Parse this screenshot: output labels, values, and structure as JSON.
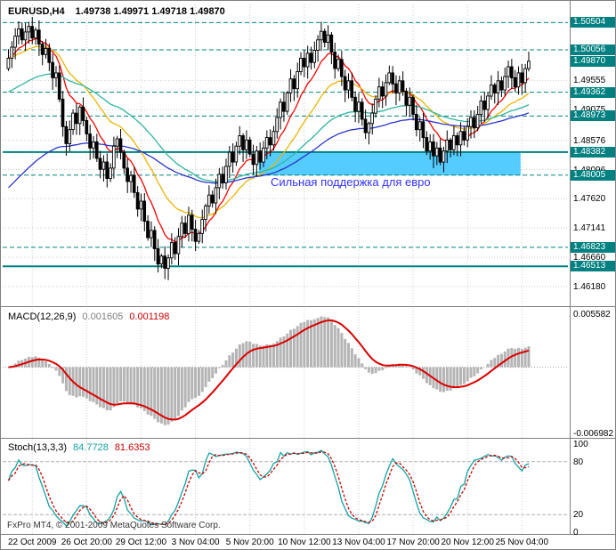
{
  "main": {
    "symbol_title": "EURUSD,H4",
    "ohlc_text": "1.49738 1.49971 1.49718 1.49870",
    "annotation": {
      "text": "Сильная поддержка для евро"
    },
    "moving_averages": [
      {
        "period": 10,
        "color": "#ff0000",
        "seed": null
      },
      {
        "period": 24,
        "color": "#edb400",
        "seed": null
      },
      {
        "period": 55,
        "color": "#2eb6a0",
        "seed": 1.4935
      },
      {
        "period": 85,
        "color": "#2a35c8",
        "seed": 1.4775
      }
    ]
  },
  "price_scale": {
    "plain_labels": [
      {
        "text": "1.49555",
        "value": 1.49555
      },
      {
        "text": "1.49075",
        "value": 1.49075
      },
      {
        "text": "1.48576",
        "value": 1.48576
      },
      {
        "text": "1.48096",
        "value": 1.48096
      },
      {
        "text": "1.47620",
        "value": 1.4762
      },
      {
        "text": "1.47141",
        "value": 1.47141
      },
      {
        "text": "1.46660",
        "value": 1.4666
      },
      {
        "text": "1.46180",
        "value": 1.4618
      }
    ],
    "badges": [
      {
        "text": "1.50504",
        "value": 1.50504,
        "line": "dashed"
      },
      {
        "text": "1.50056",
        "value": 1.50056,
        "line": "dashed"
      },
      {
        "text": "1.49870",
        "value": 1.4987,
        "line": "none",
        "role": "current-price"
      },
      {
        "text": "1.49362",
        "value": 1.49362,
        "line": "dashed"
      },
      {
        "text": "1.48973",
        "value": 1.48973,
        "line": "dashed"
      },
      {
        "text": "1.48382",
        "value": 1.48382,
        "line": "solid"
      },
      {
        "text": "1.48005",
        "value": 1.48005,
        "line": "dashed"
      },
      {
        "text": "1.46823",
        "value": 1.46823,
        "line": "dashed"
      },
      {
        "text": "1.46513",
        "value": 1.46513,
        "line": "solid"
      }
    ]
  },
  "chart_data": {
    "type": "candlestick",
    "symbol": "EURUSD",
    "timeframe": "H4",
    "last_ohlc": {
      "open": 1.49738,
      "high": 1.49971,
      "low": 1.49718,
      "close": 1.4987
    },
    "price_axis_top": 1.508,
    "price_axis_bottom": 1.4586,
    "first_open": 1.4975,
    "closes": [
      1.4992,
      1.501,
      1.5028,
      1.504,
      1.5022,
      1.5035,
      1.5044,
      1.5025,
      1.5038,
      1.5015,
      1.4998,
      1.5008,
      1.4985,
      1.496,
      1.4968,
      1.4925,
      1.488,
      1.4852,
      1.4875,
      1.4902,
      1.4885,
      1.4912,
      1.489,
      1.4868,
      1.4845,
      1.4855,
      1.4828,
      1.481,
      1.4822,
      1.4795,
      1.4812,
      1.4848,
      1.486,
      1.4838,
      1.4812,
      1.479,
      1.48,
      1.4772,
      1.4745,
      1.4758,
      1.4725,
      1.4698,
      1.471,
      1.468,
      1.4655,
      1.4668,
      1.4648,
      1.4665,
      1.469,
      1.4672,
      1.47,
      1.4722,
      1.4705,
      1.4735,
      1.4712,
      1.4692,
      1.4705,
      1.4728,
      1.475,
      1.4768,
      1.4755,
      1.478,
      1.4802,
      1.4788,
      1.4815,
      1.4838,
      1.4822,
      1.4848,
      1.4865,
      1.4842,
      1.4858,
      1.4835,
      1.4818,
      1.484,
      1.4822,
      1.4845,
      1.4862,
      1.485,
      1.4872,
      1.4895,
      1.492,
      1.4905,
      1.4935,
      1.4958,
      1.4942,
      1.497,
      1.4992,
      1.4978,
      1.5,
      1.4985,
      1.5005,
      1.5022,
      1.5036,
      1.5018,
      1.503,
      1.5002,
      1.4975,
      1.499,
      1.4962,
      1.494,
      1.4955,
      1.4928,
      1.4905,
      1.492,
      1.4892,
      1.487,
      1.4885,
      1.4902,
      1.4925,
      1.4945,
      1.493,
      1.4952,
      1.4968,
      1.495,
      1.4935,
      1.4955,
      1.4938,
      1.4915,
      1.4928,
      1.49,
      1.4875,
      1.4888,
      1.4862,
      1.484,
      1.4855,
      1.4832,
      1.4845,
      1.4822,
      1.484,
      1.4858,
      1.4842,
      1.4865,
      1.485,
      1.4872,
      1.4858,
      1.488,
      1.4895,
      1.4878,
      1.49,
      1.4922,
      1.4908,
      1.493,
      1.4948,
      1.4935,
      1.4955,
      1.494,
      1.4962,
      1.4978,
      1.496,
      1.4945,
      1.4968,
      1.4952,
      1.4975,
      1.4987
    ],
    "x_ticks": [
      {
        "label": "22 Oct 2009",
        "bar": 7
      },
      {
        "label": "26 Oct 20:00",
        "bar": 23
      },
      {
        "label": "29 Oct 12:00",
        "bar": 39
      },
      {
        "label": "3 Nov 04:00",
        "bar": 55
      },
      {
        "label": "5 Nov 20:00",
        "bar": 71
      },
      {
        "label": "10 Nov 12:00",
        "bar": 87
      },
      {
        "label": "13 Nov 04:00",
        "bar": 103
      },
      {
        "label": "17 Nov 20:00",
        "bar": 119
      },
      {
        "label": "20 Nov 12:00",
        "bar": 135
      },
      {
        "label": "25 Nov 04:00",
        "bar": 151
      }
    ],
    "support_zone": {
      "price_top": 1.4838,
      "price_bottom": 1.48,
      "bar_start": 74,
      "bar_end": 151,
      "color": "#55ccff"
    }
  },
  "macd": {
    "title": "MACD(12,26,9)",
    "value_main": "0.001605",
    "value_signal": "0.001198",
    "params": {
      "fast": 12,
      "slow": 26,
      "signal": 9
    },
    "axis_labels": [
      {
        "text": "0.005582",
        "value": 0.005582
      },
      {
        "text": "-0.006982",
        "value": -0.006982
      }
    ],
    "scale": {
      "top": 0.0058,
      "bottom": -0.007
    },
    "colors": {
      "histogram": "#b4b4b4",
      "signal": "#dd0000"
    },
    "value_colors": [
      "#808080",
      "#cc0000"
    ]
  },
  "stoch": {
    "title": "Stoch(13,3,3)",
    "value_main": "84.7728",
    "value_signal": "81.6353",
    "params": {
      "k": 13,
      "d": 3,
      "slowing": 3
    },
    "axis_labels": [
      {
        "text": "100",
        "value": 100
      },
      {
        "text": "80",
        "value": 80
      },
      {
        "text": "20",
        "value": 20
      },
      {
        "text": "0",
        "value": 0
      }
    ],
    "levels": [
      80,
      20
    ],
    "colors": {
      "main": "#12a3a3",
      "signal": "#cc0000"
    },
    "value_colors": [
      "#12a3a3",
      "#cc0000"
    ]
  },
  "footer": {
    "copyright": "FxPro MT4, © 2001-2009 MetaQuotes Software Corp."
  },
  "colors": {
    "background": "#ffffff",
    "grid": "#cdcdcd",
    "level_teal": "#008080",
    "badge_bg": "#008080",
    "badge_text": "#ffffff",
    "candle_up_fill": "#ffffff",
    "candle_down_fill": "#000000",
    "candle_border": "#000000",
    "annotation_text": "#3333ff",
    "zone_fill": "#55ccff",
    "separator": "#808080"
  }
}
